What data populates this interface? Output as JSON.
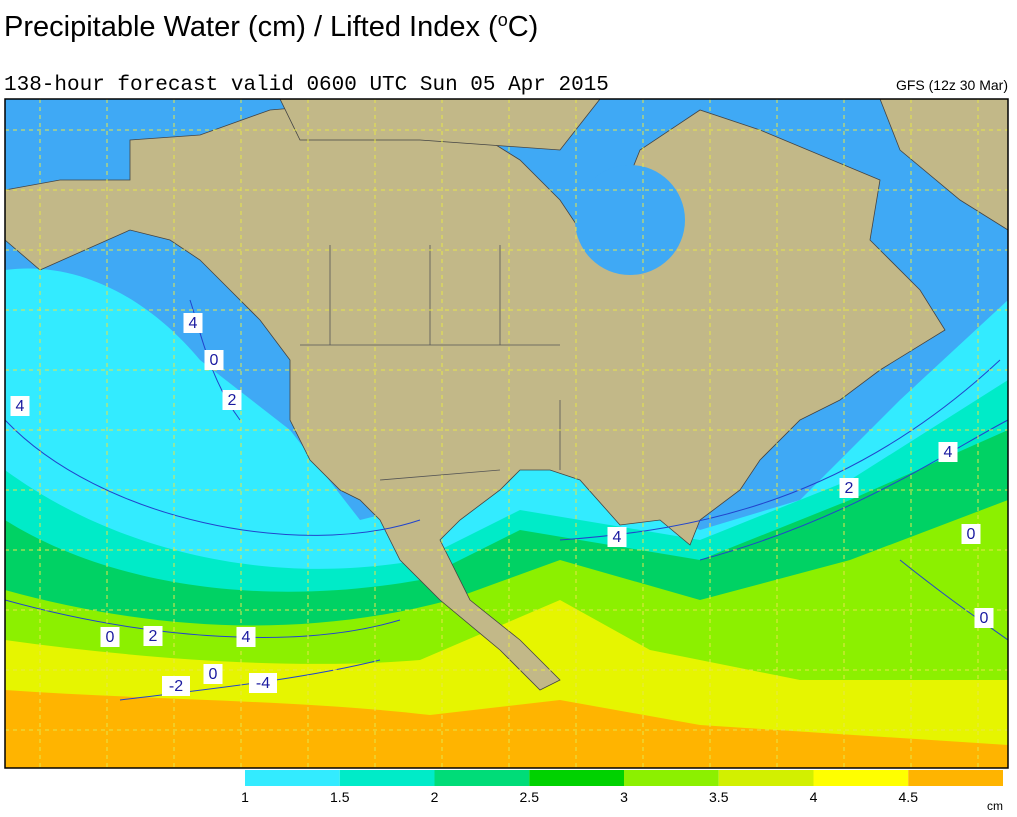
{
  "header": {
    "title": "Precipitable Water (cm) / Lifted Index (",
    "title_sup": "o",
    "title_end": "C)",
    "subtitle": "138-hour forecast valid 0600 UTC Sun 05 Apr 2015",
    "model": "GFS (12z 30 Mar)"
  },
  "contour_labels": [
    "4",
    "0",
    "2",
    "4",
    "4",
    "2",
    "0",
    "4",
    "0",
    "0",
    "2",
    "4",
    "0",
    "-2",
    "-4"
  ],
  "colorbar": {
    "ticks": [
      1,
      1.5,
      2,
      2.5,
      3,
      3.5,
      4,
      4.5
    ],
    "colors": [
      "#33ebff",
      "#00ebc8",
      "#00dc78",
      "#00d200",
      "#8cf000",
      "#d2f000",
      "#ffff00",
      "#ffb400"
    ],
    "unit": "cm"
  }
}
